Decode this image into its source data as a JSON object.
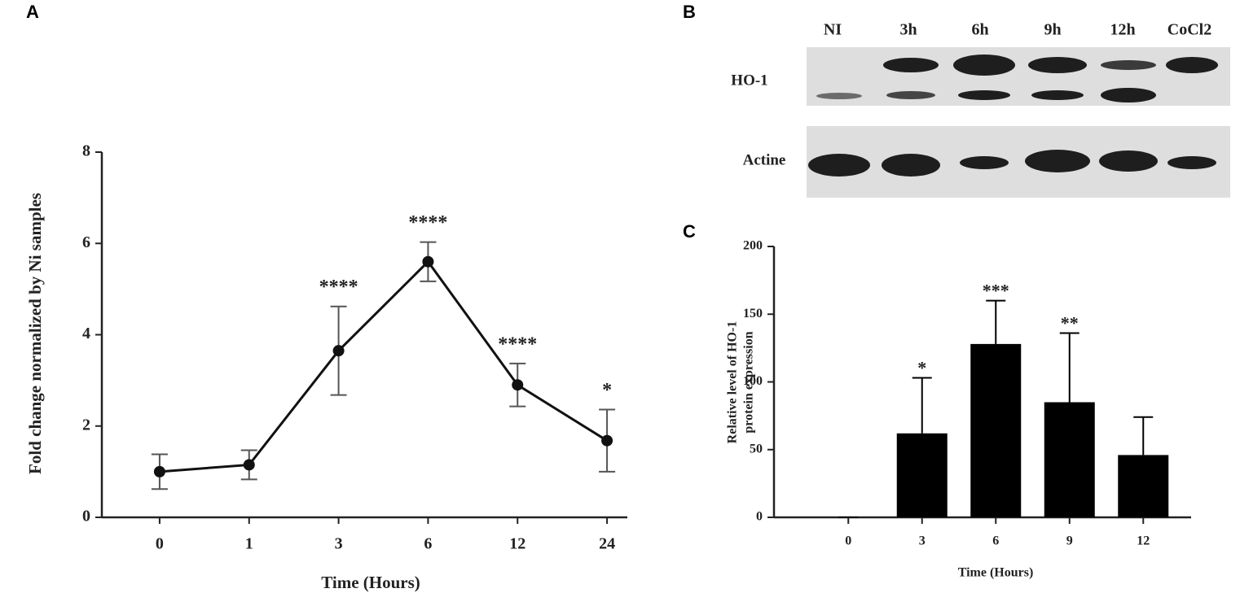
{
  "chart_data": [
    {
      "type": "line",
      "panel": "A",
      "xlabel": "Time (Hours)",
      "ylabel": "Fold change normalized by Ni samples",
      "categories": [
        "0",
        "1",
        "3",
        "6",
        "12",
        "24"
      ],
      "values": [
        1.0,
        1.15,
        3.65,
        5.6,
        2.9,
        1.68
      ],
      "errors": [
        0.38,
        0.32,
        0.97,
        0.43,
        0.47,
        0.68
      ],
      "annotations": [
        null,
        null,
        "****",
        "****",
        "****",
        "*"
      ],
      "color": "#111111",
      "ylim": [
        0,
        8
      ],
      "yticks": [
        0,
        2,
        4,
        6,
        8
      ]
    },
    {
      "type": "bar",
      "panel": "C",
      "xlabel": "Time (Hours)",
      "ylabel": [
        "Relative level of HO-1",
        "protein expression"
      ],
      "categories": [
        "0",
        "3",
        "6",
        "9",
        "12"
      ],
      "values": [
        0,
        62,
        128,
        85,
        46
      ],
      "errors": [
        0,
        41,
        32,
        51,
        28
      ],
      "annotations": [
        null,
        "*",
        "***",
        "**",
        null
      ],
      "color": "#000000",
      "ylim": [
        0,
        200
      ],
      "yticks": [
        0,
        50,
        100,
        150,
        200
      ]
    }
  ],
  "blot": {
    "panel": "B",
    "lanes": [
      "NI",
      "3h",
      "6h",
      "9h",
      "12h",
      "CoCl2"
    ],
    "rows": [
      "HO-1",
      "Actine"
    ]
  }
}
